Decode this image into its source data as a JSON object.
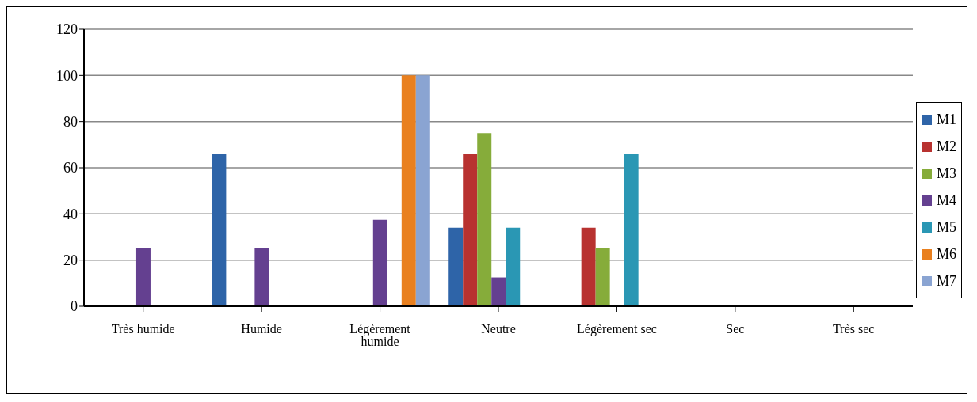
{
  "chart_data": {
    "type": "bar",
    "categories": [
      "Très humide",
      "Humide",
      "Légèrement humide",
      "Neutre",
      "Légèrement sec",
      "Sec",
      "Très sec"
    ],
    "series": [
      {
        "name": "M1",
        "color": "#2e64a8",
        "values": [
          null,
          66,
          null,
          34,
          null,
          null,
          null
        ]
      },
      {
        "name": "M2",
        "color": "#b83230",
        "values": [
          null,
          null,
          null,
          66,
          34,
          null,
          null
        ]
      },
      {
        "name": "M3",
        "color": "#86ac3a",
        "values": [
          null,
          null,
          null,
          75,
          25,
          null,
          null
        ]
      },
      {
        "name": "M4",
        "color": "#644090",
        "values": [
          25,
          25,
          37.5,
          12.5,
          null,
          null,
          null
        ]
      },
      {
        "name": "M5",
        "color": "#2a97b4",
        "values": [
          null,
          null,
          null,
          34,
          66,
          null,
          null
        ]
      },
      {
        "name": "M6",
        "color": "#e9801f",
        "values": [
          null,
          null,
          100,
          null,
          null,
          null,
          null
        ]
      },
      {
        "name": "M7",
        "color": "#8aa4d2",
        "values": [
          null,
          null,
          100,
          null,
          null,
          null,
          null
        ]
      }
    ],
    "ylim": [
      0,
      120
    ],
    "yticks": [
      0,
      20,
      40,
      60,
      80,
      100,
      120
    ],
    "grid": "y",
    "legend": "right"
  }
}
